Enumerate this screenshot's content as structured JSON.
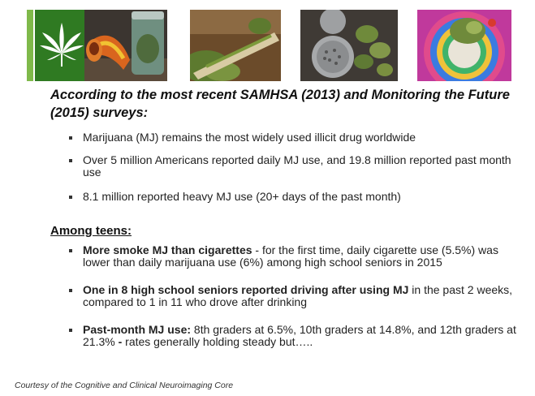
{
  "images": [
    {
      "name": "cannabis-leaf-logo-image"
    },
    {
      "name": "glass-pipe-and-jar-image"
    },
    {
      "name": "rolled-joint-image"
    },
    {
      "name": "grinder-and-buds-image"
    },
    {
      "name": "colorful-pipe-with-bud-image"
    }
  ],
  "title": "According to the most recent SAMHSA (2013) and Monitoring the Future (2015) surveys:",
  "bullets": [
    "Marijuana (MJ) remains the most widely used illicit drug worldwide",
    "Over 5 million Americans reported daily MJ use, and 19.8 million reported past month use",
    "8.1 million reported heavy MJ  use (20+ days of the past month)"
  ],
  "teens_heading": "Among teens:",
  "teen_bullets": [
    {
      "bold": "More smoke MJ than cigarettes",
      "text": " - for the first time, daily cigarette use (5.5%) was lower than daily marijuana use (6%) among high school seniors in 2015"
    },
    {
      "bold": "One in 8 high school seniors reported driving after using MJ",
      "text": " in the past 2 weeks, compared to 1 in 11 who drove after drinking"
    },
    {
      "bold": "Past-month MJ use:",
      "text": " 8th graders at 6.5%, 10th graders at 14.8%, and 12th graders at 21.3% ",
      "bold2": "-",
      "text2": " rates generally holding steady but….."
    }
  ],
  "footer": "Courtesy of the Cognitive and Clinical Neuroimaging Core",
  "colors": {
    "leaf_green": "#3e8f2d",
    "leaf_panel": "#2f7a22"
  }
}
